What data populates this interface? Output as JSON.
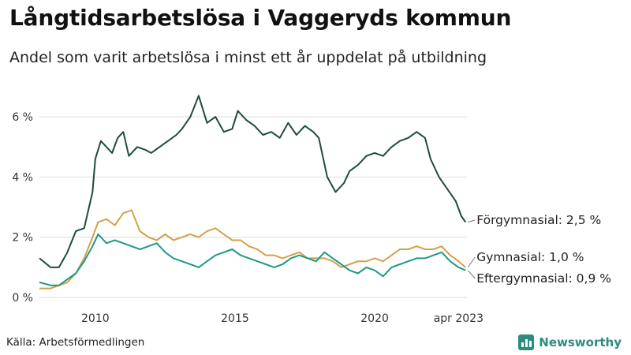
{
  "title": "Långtidsarbetslösa i Vaggeryds kommun",
  "subtitle": "Andel som varit arbetslösa i minst ett år uppdelat på utbildning",
  "source": "Källa: Arbetsförmedlingen",
  "logo_text": "Newsworthy",
  "chart_data": {
    "type": "line",
    "x_ticks": [
      "2010",
      "2015",
      "2020",
      "apr 2023"
    ],
    "y_ticks": [
      "0 %",
      "2 %",
      "4 %",
      "6 %"
    ],
    "ylim": [
      0,
      7
    ],
    "xlim": [
      2008.0,
      2023.3
    ],
    "series": [
      {
        "name": "Förgymnasial",
        "end_label": "Förgymnasial: 2,5 %",
        "color": "#1f4a3f",
        "x": [
          2008.0,
          2008.4,
          2008.7,
          2009.0,
          2009.3,
          2009.6,
          2009.9,
          2010.0,
          2010.2,
          2010.4,
          2010.6,
          2010.8,
          2011.0,
          2011.2,
          2011.5,
          2011.8,
          2012.0,
          2012.3,
          2012.6,
          2012.9,
          2013.1,
          2013.4,
          2013.7,
          2014.0,
          2014.3,
          2014.6,
          2014.9,
          2015.1,
          2015.4,
          2015.7,
          2016.0,
          2016.3,
          2016.6,
          2016.9,
          2017.2,
          2017.5,
          2017.8,
          2018.0,
          2018.3,
          2018.6,
          2018.9,
          2019.1,
          2019.4,
          2019.7,
          2020.0,
          2020.3,
          2020.6,
          2020.9,
          2021.2,
          2021.5,
          2021.8,
          2022.0,
          2022.3,
          2022.6,
          2022.9,
          2023.1,
          2023.25
        ],
        "y": [
          1.3,
          1.0,
          1.0,
          1.5,
          2.2,
          2.3,
          3.5,
          4.6,
          5.2,
          5.0,
          4.8,
          5.3,
          5.5,
          4.7,
          5.0,
          4.9,
          4.8,
          5.0,
          5.2,
          5.4,
          5.6,
          6.0,
          6.7,
          5.8,
          6.0,
          5.5,
          5.6,
          6.2,
          5.9,
          5.7,
          5.4,
          5.5,
          5.3,
          5.8,
          5.4,
          5.7,
          5.5,
          5.3,
          4.0,
          3.5,
          3.8,
          4.2,
          4.4,
          4.7,
          4.8,
          4.7,
          5.0,
          5.2,
          5.3,
          5.5,
          5.3,
          4.6,
          4.0,
          3.6,
          3.2,
          2.7,
          2.5
        ]
      },
      {
        "name": "Gymnasial",
        "end_label": "Gymnasial: 1,0 %",
        "color": "#d4a04a",
        "x": [
          2008.0,
          2008.4,
          2008.7,
          2009.0,
          2009.3,
          2009.6,
          2009.9,
          2010.1,
          2010.4,
          2010.7,
          2011.0,
          2011.3,
          2011.6,
          2011.9,
          2012.2,
          2012.5,
          2012.8,
          2013.1,
          2013.4,
          2013.7,
          2014.0,
          2014.3,
          2014.6,
          2014.9,
          2015.2,
          2015.5,
          2015.8,
          2016.1,
          2016.4,
          2016.7,
          2017.0,
          2017.3,
          2017.6,
          2017.9,
          2018.2,
          2018.5,
          2018.8,
          2019.1,
          2019.4,
          2019.7,
          2020.0,
          2020.3,
          2020.6,
          2020.9,
          2021.2,
          2021.5,
          2021.8,
          2022.1,
          2022.4,
          2022.7,
          2023.0,
          2023.25
        ],
        "y": [
          0.3,
          0.3,
          0.4,
          0.5,
          0.8,
          1.3,
          2.0,
          2.5,
          2.6,
          2.4,
          2.8,
          2.9,
          2.2,
          2.0,
          1.9,
          2.1,
          1.9,
          2.0,
          2.1,
          2.0,
          2.2,
          2.3,
          2.1,
          1.9,
          1.9,
          1.7,
          1.6,
          1.4,
          1.4,
          1.3,
          1.4,
          1.5,
          1.3,
          1.3,
          1.3,
          1.2,
          1.0,
          1.1,
          1.2,
          1.2,
          1.3,
          1.2,
          1.4,
          1.6,
          1.6,
          1.7,
          1.6,
          1.6,
          1.7,
          1.4,
          1.2,
          1.0
        ]
      },
      {
        "name": "Eftergymnasial",
        "end_label": "Eftergymnasial: 0,9 %",
        "color": "#1e9a86",
        "x": [
          2008.0,
          2008.4,
          2008.7,
          2009.0,
          2009.3,
          2009.6,
          2009.9,
          2010.1,
          2010.4,
          2010.7,
          2011.0,
          2011.3,
          2011.6,
          2011.9,
          2012.2,
          2012.5,
          2012.8,
          2013.1,
          2013.4,
          2013.7,
          2014.0,
          2014.3,
          2014.6,
          2014.9,
          2015.2,
          2015.5,
          2015.8,
          2016.1,
          2016.4,
          2016.7,
          2017.0,
          2017.3,
          2017.6,
          2017.9,
          2018.2,
          2018.5,
          2018.8,
          2019.1,
          2019.4,
          2019.7,
          2020.0,
          2020.3,
          2020.6,
          2020.9,
          2021.2,
          2021.5,
          2021.8,
          2022.1,
          2022.4,
          2022.7,
          2023.0,
          2023.25
        ],
        "y": [
          0.5,
          0.4,
          0.4,
          0.6,
          0.8,
          1.2,
          1.7,
          2.1,
          1.8,
          1.9,
          1.8,
          1.7,
          1.6,
          1.7,
          1.8,
          1.5,
          1.3,
          1.2,
          1.1,
          1.0,
          1.2,
          1.4,
          1.5,
          1.6,
          1.4,
          1.3,
          1.2,
          1.1,
          1.0,
          1.1,
          1.3,
          1.4,
          1.3,
          1.2,
          1.5,
          1.3,
          1.1,
          0.9,
          0.8,
          1.0,
          0.9,
          0.7,
          1.0,
          1.1,
          1.2,
          1.3,
          1.3,
          1.4,
          1.5,
          1.2,
          1.0,
          0.9
        ]
      }
    ]
  }
}
